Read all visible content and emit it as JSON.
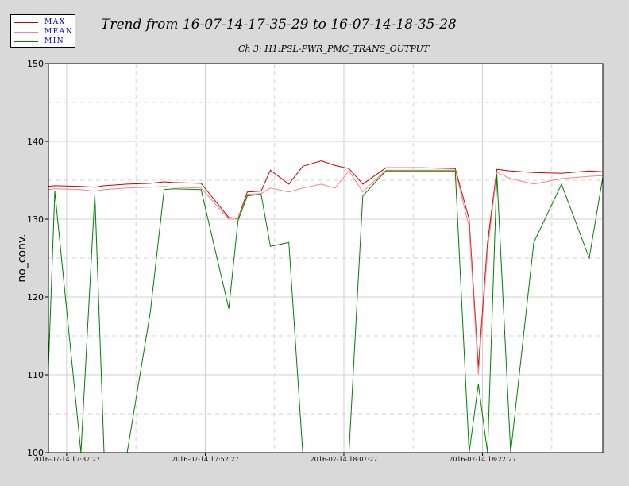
{
  "title": "Trend from 16-07-14-17-35-29 to 16-07-14-18-35-28",
  "legend": [
    {
      "label": "MAX",
      "color": "#cc0000"
    },
    {
      "label": "MEAN",
      "color": "#ff8080"
    },
    {
      "label": "MIN",
      "color": "#008000"
    }
  ],
  "chart_data": {
    "type": "line",
    "title": "Trend from 16-07-14-17-35-29 to 16-07-14-18-35-28",
    "subtitle": "Ch 3: H1:PSL-PWR_PMC_TRANS_OUTPUT",
    "xlabel": "",
    "ylabel": "no_conv.",
    "xlim": [
      "2016-07-14 17:35:29",
      "2016-07-14 18:35:28"
    ],
    "ylim": [
      100,
      150
    ],
    "yticks": [
      100,
      110,
      120,
      130,
      140,
      150
    ],
    "xticks": [
      "2016-07-14 17:37:27",
      "2016-07-14 17:52:27",
      "2016-07-14 18:07:27",
      "2016-07-14 18:22:27"
    ],
    "grid": true,
    "series": [
      {
        "name": "MAX",
        "color": "#cc0000",
        "x": [
          "2016-07-14 17:35:29",
          "2016-07-14 17:36:10",
          "2016-07-14 17:39:00",
          "2016-07-14 17:40:30",
          "2016-07-14 17:41:30",
          "2016-07-14 17:44:00",
          "2016-07-14 17:46:30",
          "2016-07-14 17:48:00",
          "2016-07-14 17:49:00",
          "2016-07-14 17:52:00",
          "2016-07-14 17:55:00",
          "2016-07-14 17:56:00",
          "2016-07-14 17:57:00",
          "2016-07-14 17:58:30",
          "2016-07-14 17:59:30",
          "2016-07-14 18:01:30",
          "2016-07-14 18:03:00",
          "2016-07-14 18:05:00",
          "2016-07-14 18:06:30",
          "2016-07-14 18:08:00",
          "2016-07-14 18:09:30",
          "2016-07-14 18:12:00",
          "2016-07-14 18:16:00",
          "2016-07-14 18:19:30",
          "2016-07-14 18:21:00",
          "2016-07-14 18:22:00",
          "2016-07-14 18:23:00",
          "2016-07-14 18:24:00",
          "2016-07-14 18:25:30",
          "2016-07-14 18:28:00",
          "2016-07-14 18:31:00",
          "2016-07-14 18:34:00",
          "2016-07-14 18:35:28"
        ],
        "y": [
          134.2,
          134.3,
          134.2,
          134.1,
          134.3,
          134.5,
          134.6,
          134.8,
          134.7,
          134.6,
          130.2,
          130.1,
          133.5,
          133.6,
          136.3,
          134.5,
          136.8,
          137.5,
          136.9,
          136.5,
          134.5,
          136.6,
          136.6,
          136.5,
          130.0,
          111.0,
          127.0,
          136.4,
          136.2,
          136.0,
          135.9,
          136.2,
          136.1
        ]
      },
      {
        "name": "MEAN",
        "color": "#ff8080",
        "x": [
          "2016-07-14 17:35:29",
          "2016-07-14 17:36:10",
          "2016-07-14 17:39:00",
          "2016-07-14 17:40:30",
          "2016-07-14 17:41:30",
          "2016-07-14 17:44:00",
          "2016-07-14 17:46:30",
          "2016-07-14 17:48:00",
          "2016-07-14 17:49:00",
          "2016-07-14 17:52:00",
          "2016-07-14 17:55:00",
          "2016-07-14 17:56:00",
          "2016-07-14 17:57:00",
          "2016-07-14 17:58:30",
          "2016-07-14 17:59:30",
          "2016-07-14 18:01:30",
          "2016-07-14 18:03:00",
          "2016-07-14 18:05:00",
          "2016-07-14 18:06:30",
          "2016-07-14 18:08:00",
          "2016-07-14 18:09:30",
          "2016-07-14 18:12:00",
          "2016-07-14 18:16:00",
          "2016-07-14 18:19:30",
          "2016-07-14 18:21:00",
          "2016-07-14 18:22:00",
          "2016-07-14 18:23:00",
          "2016-07-14 18:24:00",
          "2016-07-14 18:25:30",
          "2016-07-14 18:28:00",
          "2016-07-14 18:31:00",
          "2016-07-14 18:34:00",
          "2016-07-14 18:35:28"
        ],
        "y": [
          133.8,
          133.9,
          133.8,
          133.6,
          133.8,
          134.0,
          134.1,
          134.2,
          134.1,
          134.0,
          130.0,
          130.0,
          133.2,
          133.3,
          134.0,
          133.5,
          134.0,
          134.5,
          134.0,
          136.2,
          133.5,
          136.3,
          136.3,
          136.3,
          129.0,
          110.0,
          126.0,
          136.0,
          135.2,
          134.5,
          135.2,
          135.5,
          135.6
        ]
      },
      {
        "name": "MIN",
        "color": "#008000",
        "x": [
          "2016-07-14 17:35:29",
          "2016-07-14 17:36:10",
          "2016-07-14 17:39:00",
          "2016-07-14 17:40:30",
          "2016-07-14 17:41:30",
          "2016-07-14 17:44:00",
          "2016-07-14 17:46:30",
          "2016-07-14 17:48:00",
          "2016-07-14 17:49:00",
          "2016-07-14 17:52:00",
          "2016-07-14 17:55:00",
          "2016-07-14 17:56:00",
          "2016-07-14 17:57:00",
          "2016-07-14 17:58:30",
          "2016-07-14 17:59:30",
          "2016-07-14 18:01:30",
          "2016-07-14 18:03:00",
          "2016-07-14 18:05:00",
          "2016-07-14 18:06:30",
          "2016-07-14 18:08:00",
          "2016-07-14 18:09:30",
          "2016-07-14 18:12:00",
          "2016-07-14 18:16:00",
          "2016-07-14 18:19:30",
          "2016-07-14 18:21:00",
          "2016-07-14 18:22:00",
          "2016-07-14 18:23:00",
          "2016-07-14 18:24:00",
          "2016-07-14 18:25:30",
          "2016-07-14 18:28:00",
          "2016-07-14 18:31:00",
          "2016-07-14 18:34:00",
          "2016-07-14 18:35:28"
        ],
        "y": [
          111.0,
          133.6,
          100.0,
          133.3,
          100.0,
          100.0,
          118.0,
          133.8,
          133.9,
          133.8,
          118.5,
          129.8,
          133.0,
          133.2,
          126.5,
          127.0,
          100.0,
          100.0,
          100.0,
          100.0,
          133.0,
          136.2,
          136.2,
          136.2,
          100.0,
          108.8,
          100.0,
          135.8,
          100.0,
          127.0,
          134.5,
          125.0,
          135.4
        ]
      }
    ]
  }
}
